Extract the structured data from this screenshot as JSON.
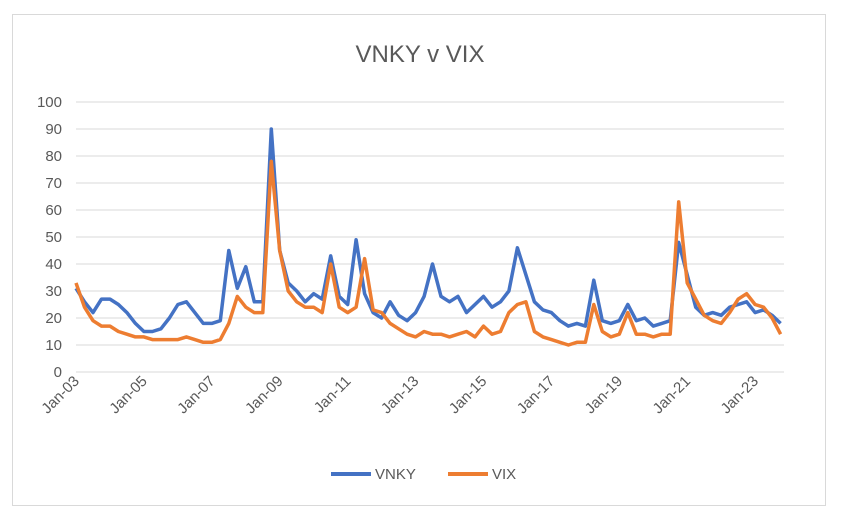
{
  "chart_data": {
    "type": "line",
    "title": "VNKY v VIX",
    "xlabel": "",
    "ylabel": "",
    "ylim": [
      0,
      100
    ],
    "yticks": [
      "0",
      "10",
      "20",
      "30",
      "40",
      "50",
      "60",
      "70",
      "80",
      "90",
      "100"
    ],
    "xticks": [
      "Jan-03",
      "Jan-05",
      "Jan-07",
      "Jan-09",
      "Jan-11",
      "Jan-13",
      "Jan-15",
      "Jan-17",
      "Jan-19",
      "Jan-21",
      "Jan-23"
    ],
    "grid": true,
    "legend_position": "bottom",
    "x": [
      2003.0,
      2003.25,
      2003.5,
      2003.75,
      2004.0,
      2004.25,
      2004.5,
      2004.75,
      2005.0,
      2005.25,
      2005.5,
      2005.75,
      2006.0,
      2006.25,
      2006.5,
      2006.75,
      2007.0,
      2007.25,
      2007.5,
      2007.75,
      2008.0,
      2008.25,
      2008.5,
      2008.75,
      2009.0,
      2009.25,
      2009.5,
      2009.75,
      2010.0,
      2010.25,
      2010.5,
      2010.75,
      2011.0,
      2011.25,
      2011.5,
      2011.75,
      2012.0,
      2012.25,
      2012.5,
      2012.75,
      2013.0,
      2013.25,
      2013.5,
      2013.75,
      2014.0,
      2014.25,
      2014.5,
      2014.75,
      2015.0,
      2015.25,
      2015.5,
      2015.75,
      2016.0,
      2016.25,
      2016.5,
      2016.75,
      2017.0,
      2017.25,
      2017.5,
      2017.75,
      2018.0,
      2018.25,
      2018.5,
      2018.75,
      2019.0,
      2019.25,
      2019.5,
      2019.75,
      2020.0,
      2020.25,
      2020.5,
      2020.75,
      2021.0,
      2021.25,
      2021.5,
      2021.75,
      2022.0,
      2022.25,
      2022.5,
      2022.75,
      2023.0,
      2023.25,
      2023.5,
      2023.75
    ],
    "series": [
      {
        "name": "VNKY",
        "color": "#4472c4",
        "values": [
          31,
          26,
          22,
          27,
          27,
          25,
          22,
          18,
          15,
          15,
          16,
          20,
          25,
          26,
          22,
          18,
          18,
          19,
          45,
          31,
          39,
          26,
          26,
          90,
          45,
          33,
          30,
          26,
          29,
          27,
          43,
          28,
          25,
          49,
          29,
          22,
          20,
          26,
          21,
          19,
          22,
          28,
          40,
          28,
          26,
          28,
          22,
          25,
          28,
          24,
          26,
          30,
          46,
          36,
          26,
          23,
          22,
          19,
          17,
          18,
          17,
          34,
          19,
          18,
          19,
          25,
          19,
          20,
          17,
          18,
          19,
          48,
          36,
          24,
          21,
          22,
          21,
          24,
          25,
          26,
          22,
          23,
          21,
          18
        ]
      },
      {
        "name": "VIX",
        "color": "#ed7d31",
        "values": [
          33,
          24,
          19,
          17,
          17,
          15,
          14,
          13,
          13,
          12,
          12,
          12,
          12,
          13,
          12,
          11,
          11,
          12,
          18,
          28,
          24,
          22,
          22,
          78,
          45,
          30,
          26,
          24,
          24,
          22,
          40,
          24,
          22,
          24,
          42,
          23,
          22,
          18,
          16,
          14,
          13,
          15,
          14,
          14,
          13,
          14,
          15,
          13,
          17,
          14,
          15,
          22,
          25,
          26,
          15,
          13,
          12,
          11,
          10,
          11,
          11,
          25,
          15,
          13,
          14,
          22,
          14,
          14,
          13,
          14,
          14,
          63,
          33,
          27,
          21,
          19,
          18,
          22,
          27,
          29,
          25,
          24,
          20,
          14
        ]
      }
    ]
  }
}
